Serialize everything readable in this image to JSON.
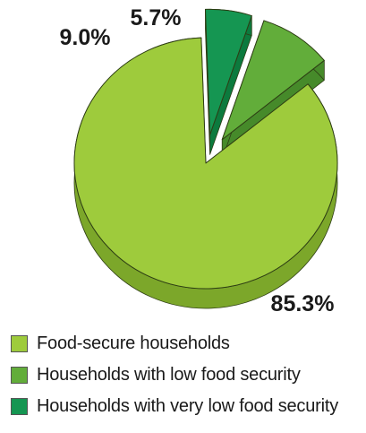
{
  "chart_data": {
    "type": "pie",
    "categories": [
      "Food-secure households",
      "Households with low food security",
      "Households with very low food security"
    ],
    "values": [
      85.3,
      9.0,
      5.7
    ],
    "value_labels": [
      "85.3%",
      "9.0%",
      "5.7%"
    ],
    "colors": [
      "#9ecb3c",
      "#62ad3a",
      "#159652"
    ],
    "side_colors": [
      "#7ca72a",
      "#468a2a",
      "#0c7a3e"
    ],
    "exploded": [
      false,
      true,
      true
    ],
    "legend_position": "bottom",
    "title": ""
  }
}
